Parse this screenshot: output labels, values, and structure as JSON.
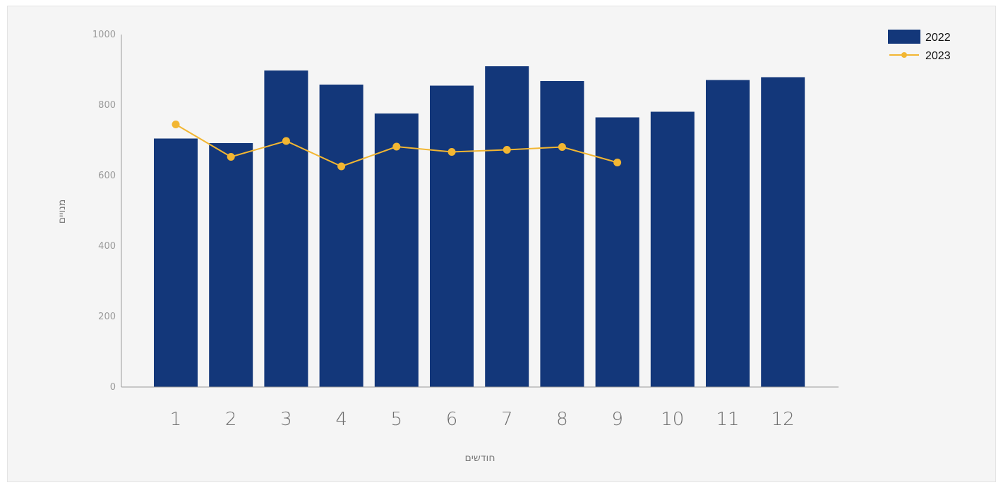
{
  "chart_data": {
    "type": "bar",
    "title": "",
    "xlabel": "חודשים",
    "ylabel": "מנויים",
    "ylim": [
      0,
      1000
    ],
    "yticks": [
      "0",
      "200",
      "400",
      "600",
      "800",
      "1000"
    ],
    "categories": [
      "1",
      "2",
      "3",
      "4",
      "5",
      "6",
      "7",
      "8",
      "9",
      "10",
      "11",
      "12"
    ],
    "grid": false,
    "legend_position": "top-right",
    "series": [
      {
        "name": "2022",
        "kind": "bar",
        "color": "#13377a",
        "values": [
          705,
          692,
          898,
          858,
          776,
          855,
          910,
          868,
          765,
          781,
          871,
          879
        ]
      },
      {
        "name": "2023",
        "kind": "line",
        "color": "#f2b632",
        "values": [
          745,
          653,
          698,
          626,
          682,
          667,
          673,
          681,
          637,
          null,
          null,
          null
        ]
      }
    ]
  }
}
